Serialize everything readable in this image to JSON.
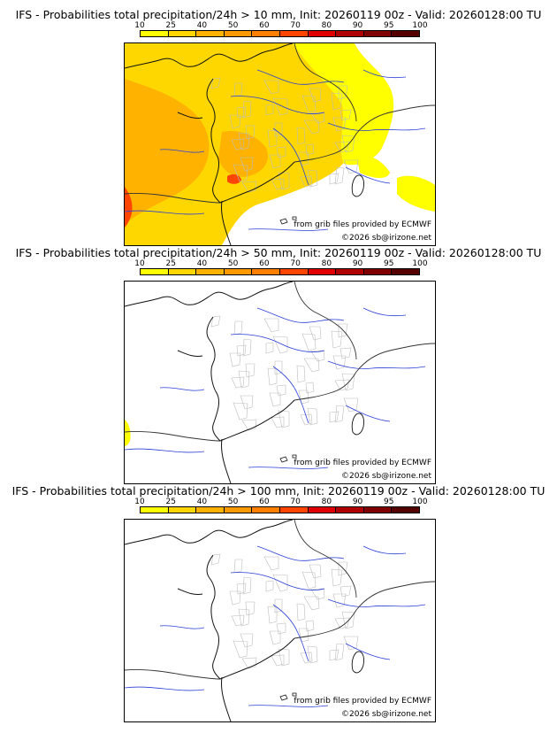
{
  "colorbar": {
    "levels": [
      "10",
      "25",
      "40",
      "50",
      "60",
      "70",
      "80",
      "90",
      "95",
      "100"
    ],
    "colors": [
      "#ffff00",
      "#ffd700",
      "#ffb300",
      "#ff9900",
      "#ff7f00",
      "#ff4500",
      "#e00000",
      "#b00000",
      "#800000",
      "#550000"
    ]
  },
  "panels": [
    {
      "title": "IFS - Probabilities total precipitation/24h > 10 mm, Init: 20260119 00z - Valid: 20260128:00 TU",
      "source": "from grib files provided by ECMWF",
      "copyright": "©2026 sb@irizone.net",
      "threshold_mm": 10,
      "coverage": "high"
    },
    {
      "title": "IFS - Probabilities total precipitation/24h > 50 mm, Init: 20260119 00z - Valid: 20260128:00 TU",
      "source": "from grib files provided by ECMWF",
      "copyright": "©2026 sb@irizone.net",
      "threshold_mm": 50,
      "coverage": "low"
    },
    {
      "title": "IFS - Probabilities total precipitation/24h > 100 mm, Init: 20260119 00z - Valid: 20260128:00 TU",
      "source": "from grib files provided by ECMWF",
      "copyright": "©2026 sb@irizone.net",
      "threshold_mm": 100,
      "coverage": "none"
    }
  ]
}
